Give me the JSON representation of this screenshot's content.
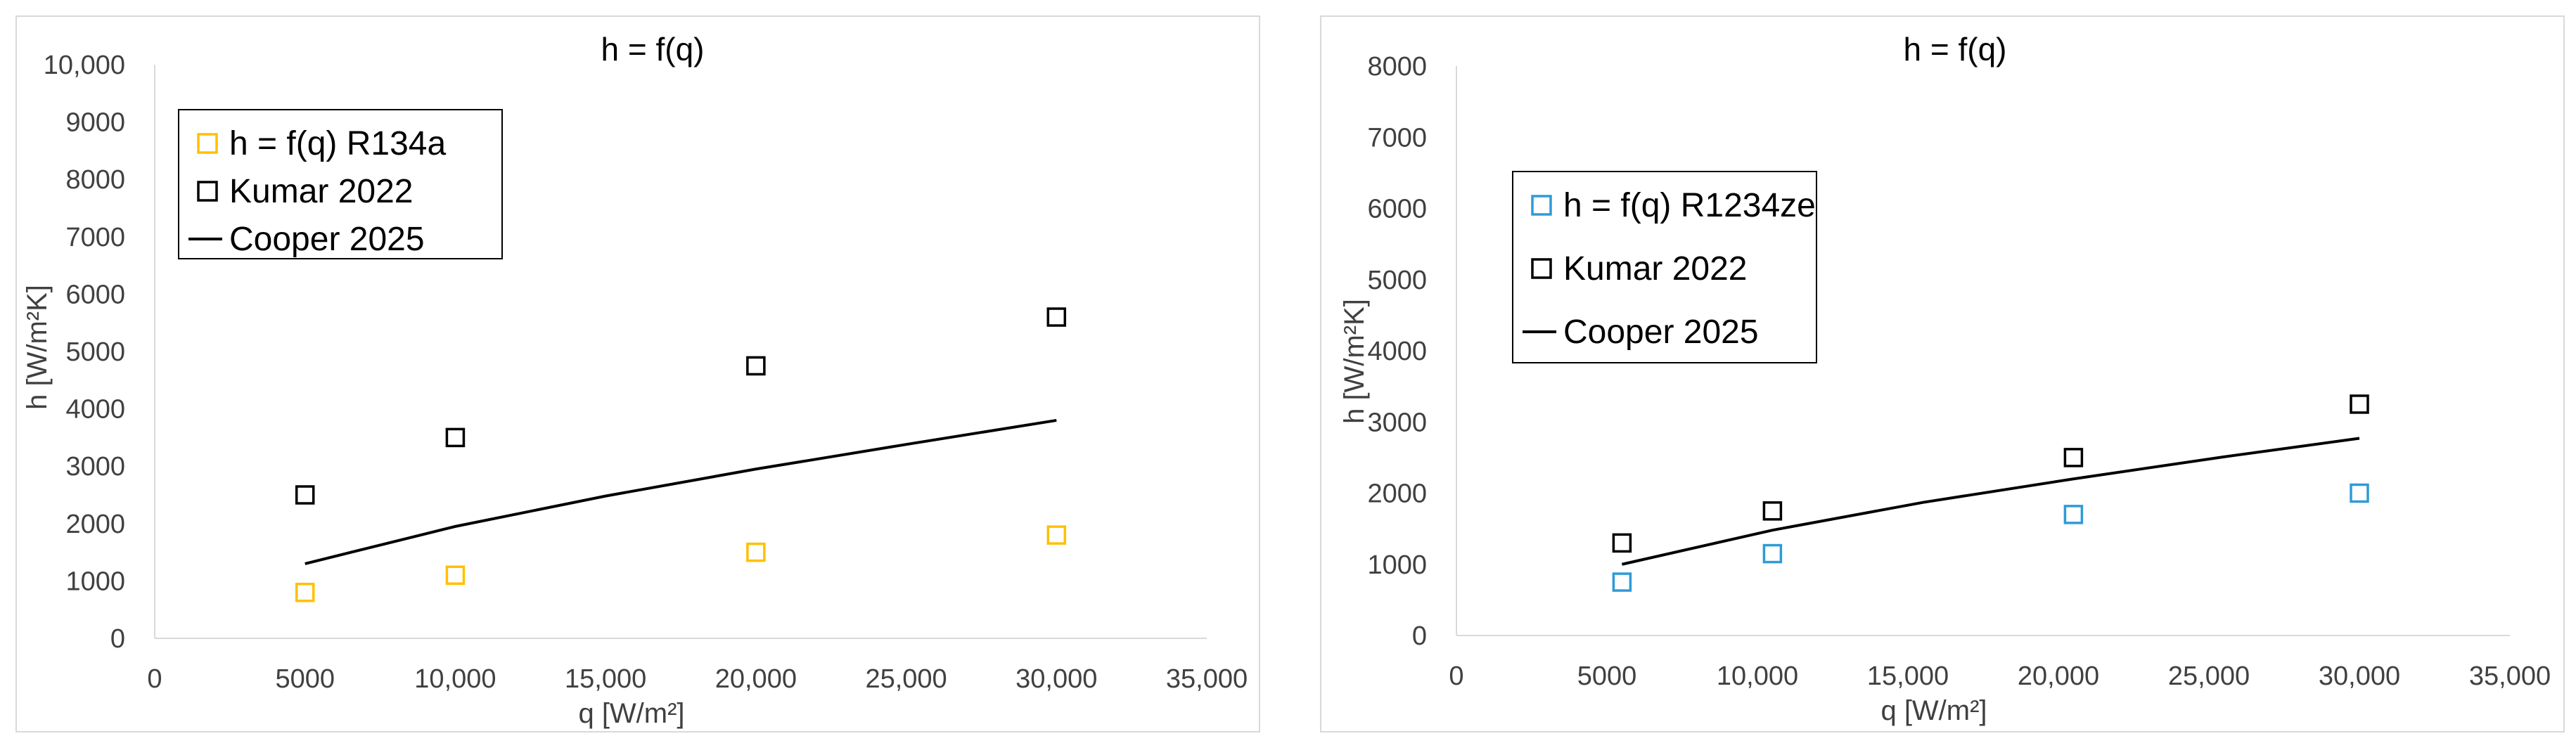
{
  "chart_data": [
    {
      "type": "scatter",
      "title": "h = f(q)",
      "xlabel": "q [W/m²]",
      "ylabel": "h [W/m²K]",
      "xlim": [
        0,
        35000
      ],
      "ylim": [
        0,
        10000
      ],
      "x_ticks": [
        "0",
        "5000",
        "10,000",
        "15,000",
        "20,000",
        "25,000",
        "30,000",
        "35,000"
      ],
      "y_ticks": [
        "0",
        "1000",
        "2000",
        "3000",
        "4000",
        "5000",
        "6000",
        "7000",
        "8000",
        "9000",
        "10,000"
      ],
      "grid": false,
      "legend_position": "top-left",
      "series": [
        {
          "name": "h = f(q) R134a",
          "marker": "square",
          "color": "#FFC000",
          "x": [
            5000,
            10000,
            20000,
            30000
          ],
          "y": [
            800,
            1100,
            1500,
            1800
          ]
        },
        {
          "name": "Kumar 2022",
          "marker": "square",
          "color": "#000000",
          "x": [
            5000,
            10000,
            20000,
            30000
          ],
          "y": [
            2500,
            3500,
            4750,
            5600
          ]
        },
        {
          "name": "Cooper 2025",
          "marker": "line",
          "color": "#000000",
          "x": [
            5000,
            10000,
            15000,
            20000,
            25000,
            30000
          ],
          "y": [
            1300,
            1950,
            2480,
            2950,
            3380,
            3800
          ]
        }
      ]
    },
    {
      "type": "scatter",
      "title": "h = f(q)",
      "xlabel": "q [W/m²]",
      "ylabel": "h [W/m²K]",
      "xlim": [
        0,
        35000
      ],
      "ylim": [
        0,
        8000
      ],
      "x_ticks": [
        "0",
        "5000",
        "10,000",
        "15,000",
        "20,000",
        "25,000",
        "30,000",
        "35,000"
      ],
      "y_ticks": [
        "0",
        "1000",
        "2000",
        "3000",
        "4000",
        "5000",
        "6000",
        "7000",
        "8000"
      ],
      "grid": false,
      "legend_position": "top-left",
      "series": [
        {
          "name": "h = f(q) R1234ze",
          "marker": "square",
          "color": "#2E9BD6",
          "x": [
            5500,
            10500,
            20500,
            30000
          ],
          "y": [
            750,
            1150,
            1700,
            2000
          ]
        },
        {
          "name": "Kumar 2022",
          "marker": "square",
          "color": "#000000",
          "x": [
            5500,
            10500,
            20500,
            30000
          ],
          "y": [
            1300,
            1750,
            2500,
            3250
          ]
        },
        {
          "name": "Cooper 2025",
          "marker": "line",
          "color": "#000000",
          "x": [
            5500,
            10500,
            15500,
            20500,
            25500,
            30000
          ],
          "y": [
            1000,
            1480,
            1870,
            2200,
            2510,
            2770
          ]
        }
      ]
    }
  ]
}
